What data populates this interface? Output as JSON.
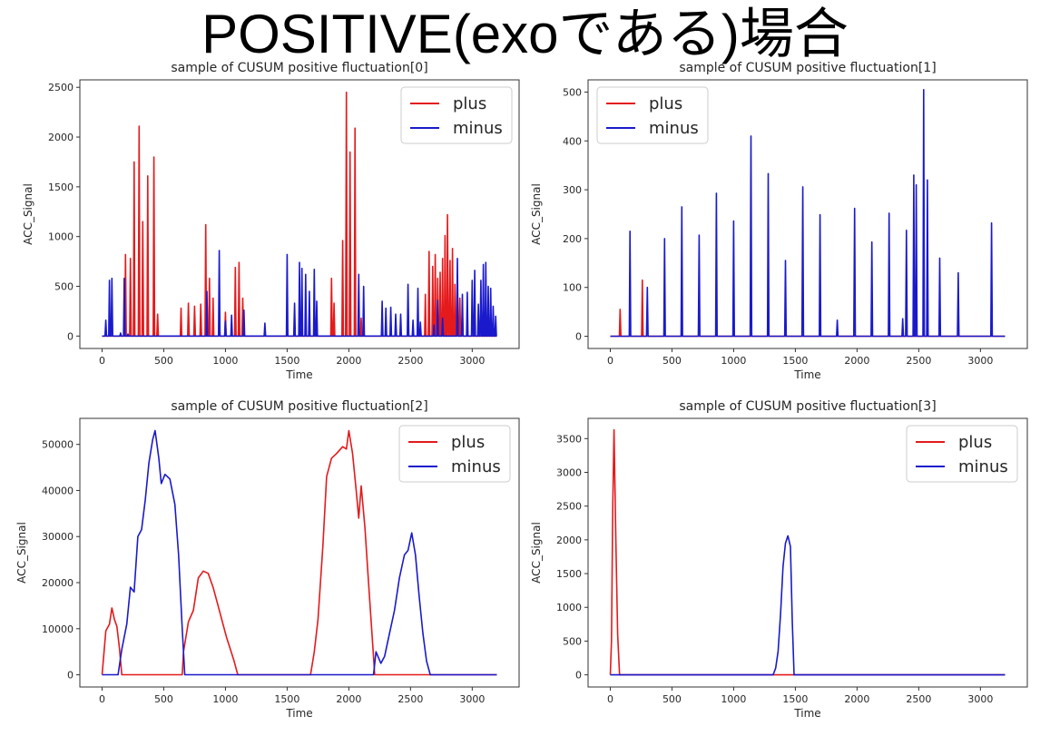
{
  "page_title": "POSITIVE(exoである)場合",
  "colors": {
    "plus": "#e41a1c",
    "minus": "#1a1acc"
  },
  "chart_data": [
    {
      "type": "line",
      "title": "sample of CUSUM positive fluctuation[0]",
      "xlabel": "Time",
      "ylabel": "ACC_Signal",
      "xlim": [
        -180,
        3380
      ],
      "ylim": [
        -125,
        2575
      ],
      "xticks": [
        0,
        500,
        1000,
        1500,
        2000,
        2500,
        3000
      ],
      "yticks": [
        0,
        500,
        1000,
        1500,
        2000,
        2500
      ],
      "legend": "top-right",
      "series": [
        {
          "name": "plus",
          "color": "#e41a1c",
          "spikes": [
            [
              190,
              820
            ],
            [
              230,
              780
            ],
            [
              260,
              1750
            ],
            [
              300,
              2110
            ],
            [
              330,
              1150
            ],
            [
              370,
              1610
            ],
            [
              420,
              1800
            ],
            [
              450,
              220
            ],
            [
              640,
              280
            ],
            [
              700,
              330
            ],
            [
              750,
              300
            ],
            [
              800,
              320
            ],
            [
              840,
              1120
            ],
            [
              870,
              580
            ],
            [
              900,
              380
            ],
            [
              950,
              250
            ],
            [
              1000,
              240
            ],
            [
              1080,
              690
            ],
            [
              1110,
              740
            ],
            [
              1140,
              380
            ],
            [
              1860,
              580
            ],
            [
              1880,
              330
            ],
            [
              1950,
              960
            ],
            [
              1980,
              2450
            ],
            [
              2010,
              1850
            ],
            [
              2050,
              2090
            ],
            [
              2100,
              180
            ],
            [
              2620,
              420
            ],
            [
              2650,
              850
            ],
            [
              2680,
              700
            ],
            [
              2700,
              820
            ],
            [
              2720,
              580
            ],
            [
              2740,
              640
            ],
            [
              2760,
              780
            ],
            [
              2780,
              1010
            ],
            [
              2800,
              1220
            ],
            [
              2820,
              760
            ],
            [
              2840,
              880
            ],
            [
              2860,
              520
            ],
            [
              2880,
              610
            ],
            [
              2900,
              380
            ],
            [
              2920,
              250
            ]
          ]
        },
        {
          "name": "minus",
          "color": "#1a1acc",
          "spikes": [
            [
              30,
              160
            ],
            [
              60,
              560
            ],
            [
              80,
              580
            ],
            [
              150,
              30
            ],
            [
              180,
              580
            ],
            [
              210,
              20
            ],
            [
              850,
              450
            ],
            [
              950,
              860
            ],
            [
              1000,
              150
            ],
            [
              1050,
              210
            ],
            [
              1150,
              260
            ],
            [
              1320,
              130
            ],
            [
              1500,
              820
            ],
            [
              1560,
              330
            ],
            [
              1600,
              740
            ],
            [
              1620,
              680
            ],
            [
              1650,
              620
            ],
            [
              1680,
              450
            ],
            [
              1720,
              670
            ],
            [
              1740,
              350
            ],
            [
              2080,
              620
            ],
            [
              2120,
              500
            ],
            [
              2270,
              350
            ],
            [
              2300,
              280
            ],
            [
              2340,
              290
            ],
            [
              2380,
              220
            ],
            [
              2420,
              220
            ],
            [
              2480,
              520
            ],
            [
              2520,
              160
            ],
            [
              2560,
              480
            ],
            [
              2580,
              140
            ],
            [
              2690,
              110
            ],
            [
              2720,
              360
            ],
            [
              2760,
              180
            ],
            [
              2880,
              780
            ],
            [
              2920,
              420
            ],
            [
              2960,
              440
            ],
            [
              3000,
              560
            ],
            [
              3020,
              660
            ],
            [
              3050,
              320
            ],
            [
              3070,
              560
            ],
            [
              3090,
              720
            ],
            [
              3110,
              740
            ],
            [
              3130,
              500
            ],
            [
              3150,
              480
            ],
            [
              3170,
              300
            ],
            [
              3190,
              200
            ]
          ]
        }
      ]
    },
    {
      "type": "line",
      "title": "sample of CUSUM positive fluctuation[1]",
      "xlabel": "Time",
      "ylabel": "ACC_Signal",
      "xlim": [
        -180,
        3380
      ],
      "ylim": [
        -25,
        525
      ],
      "xticks": [
        0,
        500,
        1000,
        1500,
        2000,
        2500,
        3000
      ],
      "yticks": [
        0,
        100,
        200,
        300,
        400,
        500
      ],
      "legend": "top-left",
      "series": [
        {
          "name": "plus",
          "color": "#e41a1c",
          "spikes": [
            [
              80,
              55
            ],
            [
              260,
              115
            ]
          ]
        },
        {
          "name": "minus",
          "color": "#1a1acc",
          "spikes": [
            [
              160,
              215
            ],
            [
              300,
              100
            ],
            [
              440,
              200
            ],
            [
              580,
              265
            ],
            [
              720,
              207
            ],
            [
              860,
              293
            ],
            [
              1000,
              236
            ],
            [
              1140,
              410
            ],
            [
              1280,
              333
            ],
            [
              1420,
              155
            ],
            [
              1560,
              306
            ],
            [
              1700,
              249
            ],
            [
              1840,
              33
            ],
            [
              1980,
              262
            ],
            [
              2120,
              193
            ],
            [
              2260,
              252
            ],
            [
              2370,
              36
            ],
            [
              2400,
              217
            ],
            [
              2460,
              330
            ],
            [
              2480,
              310
            ],
            [
              2540,
              505
            ],
            [
              2570,
              320
            ],
            [
              2670,
              160
            ],
            [
              2820,
              130
            ],
            [
              3090,
              232
            ]
          ]
        }
      ]
    },
    {
      "type": "line",
      "title": "sample of CUSUM positive fluctuation[2]",
      "xlabel": "Time",
      "ylabel": "ACC_Signal",
      "xlim": [
        -180,
        3380
      ],
      "ylim": [
        -2650,
        55650
      ],
      "xticks": [
        0,
        500,
        1000,
        1500,
        2000,
        2500,
        3000
      ],
      "yticks": [
        0,
        10000,
        20000,
        30000,
        40000,
        50000
      ],
      "legend": "top-right",
      "series": [
        {
          "name": "plus",
          "color": "#e41a1c",
          "points": [
            [
              0,
              0
            ],
            [
              30,
              9500
            ],
            [
              60,
              11000
            ],
            [
              80,
              14500
            ],
            [
              100,
              12000
            ],
            [
              120,
              10500
            ],
            [
              140,
              6000
            ],
            [
              160,
              0
            ],
            [
              650,
              0
            ],
            [
              660,
              5000
            ],
            [
              700,
              11500
            ],
            [
              740,
              14000
            ],
            [
              780,
              21000
            ],
            [
              820,
              22500
            ],
            [
              860,
              22000
            ],
            [
              900,
              19000
            ],
            [
              940,
              15000
            ],
            [
              980,
              11000
            ],
            [
              1010,
              8000
            ],
            [
              1040,
              5500
            ],
            [
              1070,
              3000
            ],
            [
              1100,
              0
            ],
            [
              1690,
              0
            ],
            [
              1720,
              5000
            ],
            [
              1750,
              12000
            ],
            [
              1790,
              28000
            ],
            [
              1820,
              43000
            ],
            [
              1860,
              47000
            ],
            [
              1900,
              48000
            ],
            [
              1950,
              49500
            ],
            [
              1980,
              49000
            ],
            [
              2000,
              53000
            ],
            [
              2030,
              48000
            ],
            [
              2060,
              40000
            ],
            [
              2080,
              34000
            ],
            [
              2100,
              41000
            ],
            [
              2130,
              32000
            ],
            [
              2160,
              20000
            ],
            [
              2190,
              8000
            ],
            [
              2210,
              0
            ],
            [
              3200,
              0
            ]
          ]
        },
        {
          "name": "minus",
          "color": "#1a1acc",
          "points": [
            [
              0,
              0
            ],
            [
              130,
              0
            ],
            [
              160,
              5500
            ],
            [
              200,
              11000
            ],
            [
              230,
              19000
            ],
            [
              260,
              18000
            ],
            [
              290,
              30000
            ],
            [
              320,
              31500
            ],
            [
              350,
              38000
            ],
            [
              380,
              46000
            ],
            [
              410,
              51000
            ],
            [
              430,
              53000
            ],
            [
              460,
              47000
            ],
            [
              480,
              41500
            ],
            [
              510,
              43500
            ],
            [
              550,
              42500
            ],
            [
              590,
              37000
            ],
            [
              620,
              26000
            ],
            [
              650,
              10000
            ],
            [
              670,
              0
            ],
            [
              2200,
              0
            ],
            [
              2220,
              5000
            ],
            [
              2260,
              2500
            ],
            [
              2290,
              4000
            ],
            [
              2330,
              9000
            ],
            [
              2370,
              14000
            ],
            [
              2410,
              21000
            ],
            [
              2450,
              26000
            ],
            [
              2480,
              27000
            ],
            [
              2510,
              30800
            ],
            [
              2540,
              26000
            ],
            [
              2570,
              17000
            ],
            [
              2600,
              9000
            ],
            [
              2630,
              3000
            ],
            [
              2660,
              0
            ],
            [
              3200,
              0
            ]
          ]
        }
      ]
    },
    {
      "type": "line",
      "title": "sample of CUSUM positive fluctuation[3]",
      "xlabel": "Time",
      "ylabel": "ACC_Signal",
      "xlim": [
        -180,
        3380
      ],
      "ylim": [
        -180,
        3800
      ],
      "xticks": [
        0,
        500,
        1000,
        1500,
        2000,
        2500,
        3000
      ],
      "yticks": [
        0,
        500,
        1000,
        1500,
        2000,
        2500,
        3000,
        3500
      ],
      "legend": "top-right",
      "series": [
        {
          "name": "plus",
          "color": "#e41a1c",
          "points": [
            [
              0,
              0
            ],
            [
              10,
              500
            ],
            [
              20,
              2500
            ],
            [
              30,
              3630
            ],
            [
              45,
              2000
            ],
            [
              60,
              600
            ],
            [
              75,
              0
            ],
            [
              3200,
              0
            ]
          ]
        },
        {
          "name": "minus",
          "color": "#1a1acc",
          "points": [
            [
              0,
              0
            ],
            [
              1320,
              0
            ],
            [
              1340,
              100
            ],
            [
              1360,
              350
            ],
            [
              1380,
              900
            ],
            [
              1400,
              1600
            ],
            [
              1420,
              1950
            ],
            [
              1440,
              2060
            ],
            [
              1460,
              1900
            ],
            [
              1475,
              800
            ],
            [
              1490,
              0
            ],
            [
              3200,
              0
            ]
          ]
        }
      ]
    }
  ]
}
